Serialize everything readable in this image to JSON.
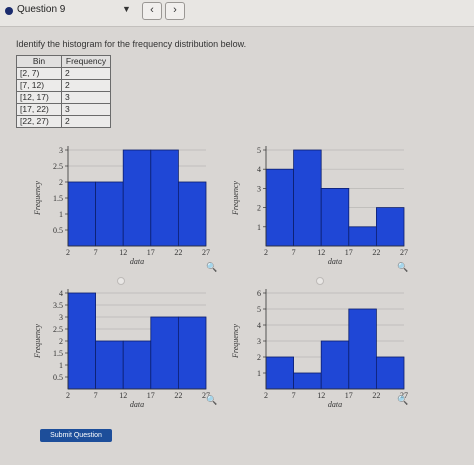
{
  "header": {
    "question_label": "Question 9"
  },
  "question": {
    "prompt": "Identify the histogram for the frequency distribution below."
  },
  "table": {
    "headers": [
      "Bin",
      "Frequency"
    ],
    "rows": [
      [
        "[2, 7)",
        "2"
      ],
      [
        "[7, 12)",
        "2"
      ],
      [
        "[12, 17)",
        "3"
      ],
      [
        "[17, 22)",
        "3"
      ],
      [
        "[22, 27)",
        "2"
      ]
    ]
  },
  "submit_label": "Submit Question",
  "colors": {
    "bar_fill": "#1f47d6",
    "bar_stroke": "#0c1f6e",
    "grid": "#b9b7b5"
  },
  "chart_data": [
    {
      "type": "bar",
      "categories": [
        "[2, 7)",
        "[7, 12)",
        "[12, 17)",
        "[17, 22)",
        "[22, 27)"
      ],
      "values": [
        2,
        2,
        3,
        3,
        2
      ],
      "xticks": [
        "2",
        "7",
        "12",
        "17",
        "22",
        "27"
      ],
      "ymax": 3,
      "yticks": [
        "0.5",
        "1",
        "1.5",
        "2",
        "2.5",
        "3"
      ],
      "xlabel": "data",
      "ylabel": "Frequency"
    },
    {
      "type": "bar",
      "categories": [
        "[2, 7)",
        "[7, 12)",
        "[12, 17)",
        "[17, 22)",
        "[22, 27)"
      ],
      "values": [
        4,
        5,
        3,
        1,
        2
      ],
      "xticks": [
        "2",
        "7",
        "12",
        "17",
        "22",
        "27"
      ],
      "ymax": 5,
      "yticks": [
        "1",
        "2",
        "3",
        "4",
        "5"
      ],
      "xlabel": "data",
      "ylabel": "Frequency"
    },
    {
      "type": "bar",
      "categories": [
        "[2, 7)",
        "[7, 12)",
        "[12, 17)",
        "[17, 22)",
        "[22, 27)"
      ],
      "values": [
        4,
        2,
        2,
        3,
        3
      ],
      "xticks": [
        "2",
        "7",
        "12",
        "17",
        "22",
        "27"
      ],
      "ymax": 4,
      "yticks": [
        "0.5",
        "1",
        "1.5",
        "2",
        "2.5",
        "3",
        "3.5",
        "4"
      ],
      "xlabel": "data",
      "ylabel": "Frequency"
    },
    {
      "type": "bar",
      "categories": [
        "[2, 7)",
        "[7, 12)",
        "[12, 17)",
        "[17, 22)",
        "[22, 27)"
      ],
      "values": [
        2,
        1,
        3,
        5,
        2
      ],
      "xticks": [
        "2",
        "7",
        "12",
        "17",
        "22",
        "27"
      ],
      "ymax": 6,
      "yticks": [
        "1",
        "2",
        "3",
        "4",
        "5",
        "6"
      ],
      "xlabel": "data",
      "ylabel": "Frequency"
    }
  ]
}
